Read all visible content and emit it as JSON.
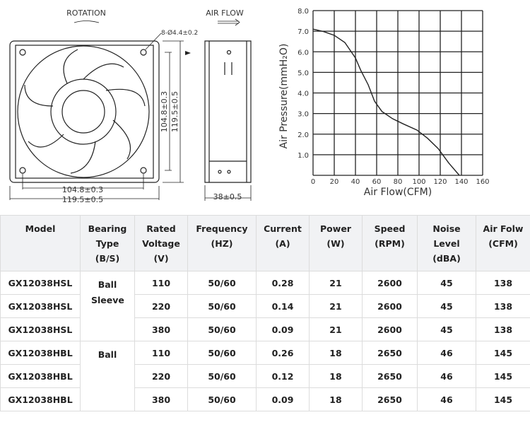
{
  "drawing": {
    "rotation": "ROTATION",
    "air_flow": "AIR FLOW",
    "holes": "8-Ø4.4±0.2",
    "width_inner": "104.8±0.3",
    "width_outer": "119.5±0.5",
    "height_inner": "104.8±0.3",
    "height_outer": "119.5±0.5",
    "depth": "38±0.5"
  },
  "chart_data": {
    "type": "line",
    "x_label": "Air Flow(CFM)",
    "y_label": "Air Pressure(mmH₂O)",
    "x": [
      0,
      10,
      20,
      30,
      40,
      45,
      52,
      58,
      65,
      75,
      85,
      98,
      108,
      118,
      128,
      138
    ],
    "series": [
      {
        "color": "#222222",
        "values": [
          7.1,
          6.98,
          6.8,
          6.45,
          5.7,
          5.1,
          4.4,
          3.6,
          3.1,
          2.75,
          2.5,
          2.2,
          1.8,
          1.3,
          0.6,
          0
        ]
      }
    ],
    "xlim": [
      0,
      160
    ],
    "ylim": [
      0,
      8
    ],
    "xticks": [
      0,
      20,
      40,
      60,
      80,
      100,
      120,
      140,
      160
    ],
    "yticks": [
      {
        "value": 1,
        "label": "1.0"
      },
      {
        "value": 2,
        "label": "2.0"
      },
      {
        "value": 3,
        "label": "3.0"
      },
      {
        "value": 4,
        "label": "4.0"
      },
      {
        "value": 5,
        "label": "5.0"
      },
      {
        "value": 6,
        "label": "6.0"
      },
      {
        "value": 7,
        "label": "7.0"
      },
      {
        "value": 8,
        "label": "8.0"
      }
    ],
    "grid": true
  },
  "table": {
    "headers": [
      [
        "Model"
      ],
      [
        "Bearing",
        "Type",
        "(B/S)"
      ],
      [
        "Rated",
        "Voltage",
        "(V)"
      ],
      [
        "Frequency",
        "(HZ)"
      ],
      [
        "Current",
        "(A)"
      ],
      [
        "Power",
        "(W)"
      ],
      [
        "Speed",
        "(RPM)"
      ],
      [
        "Noise",
        "Level",
        "(dBA)"
      ],
      [
        "Air Folw",
        "(CFM)"
      ]
    ],
    "rows": [
      [
        "GX12038HSL",
        "Ball Sleeve",
        110,
        "50/60",
        0.28,
        21,
        2600,
        45,
        138
      ],
      [
        "GX12038HSL",
        null,
        220,
        "50/60",
        0.14,
        21,
        2600,
        45,
        138
      ],
      [
        "GX12038HSL",
        null,
        380,
        "50/60",
        0.09,
        21,
        2600,
        45,
        138
      ],
      [
        "GX12038HBL",
        "Ball",
        110,
        "50/60",
        0.26,
        18,
        2650,
        46,
        145
      ],
      [
        "GX12038HBL",
        null,
        220,
        "50/60",
        0.12,
        18,
        2650,
        46,
        145
      ],
      [
        "GX12038HBL",
        null,
        380,
        "50/60",
        0.09,
        18,
        2650,
        46,
        145
      ]
    ]
  }
}
